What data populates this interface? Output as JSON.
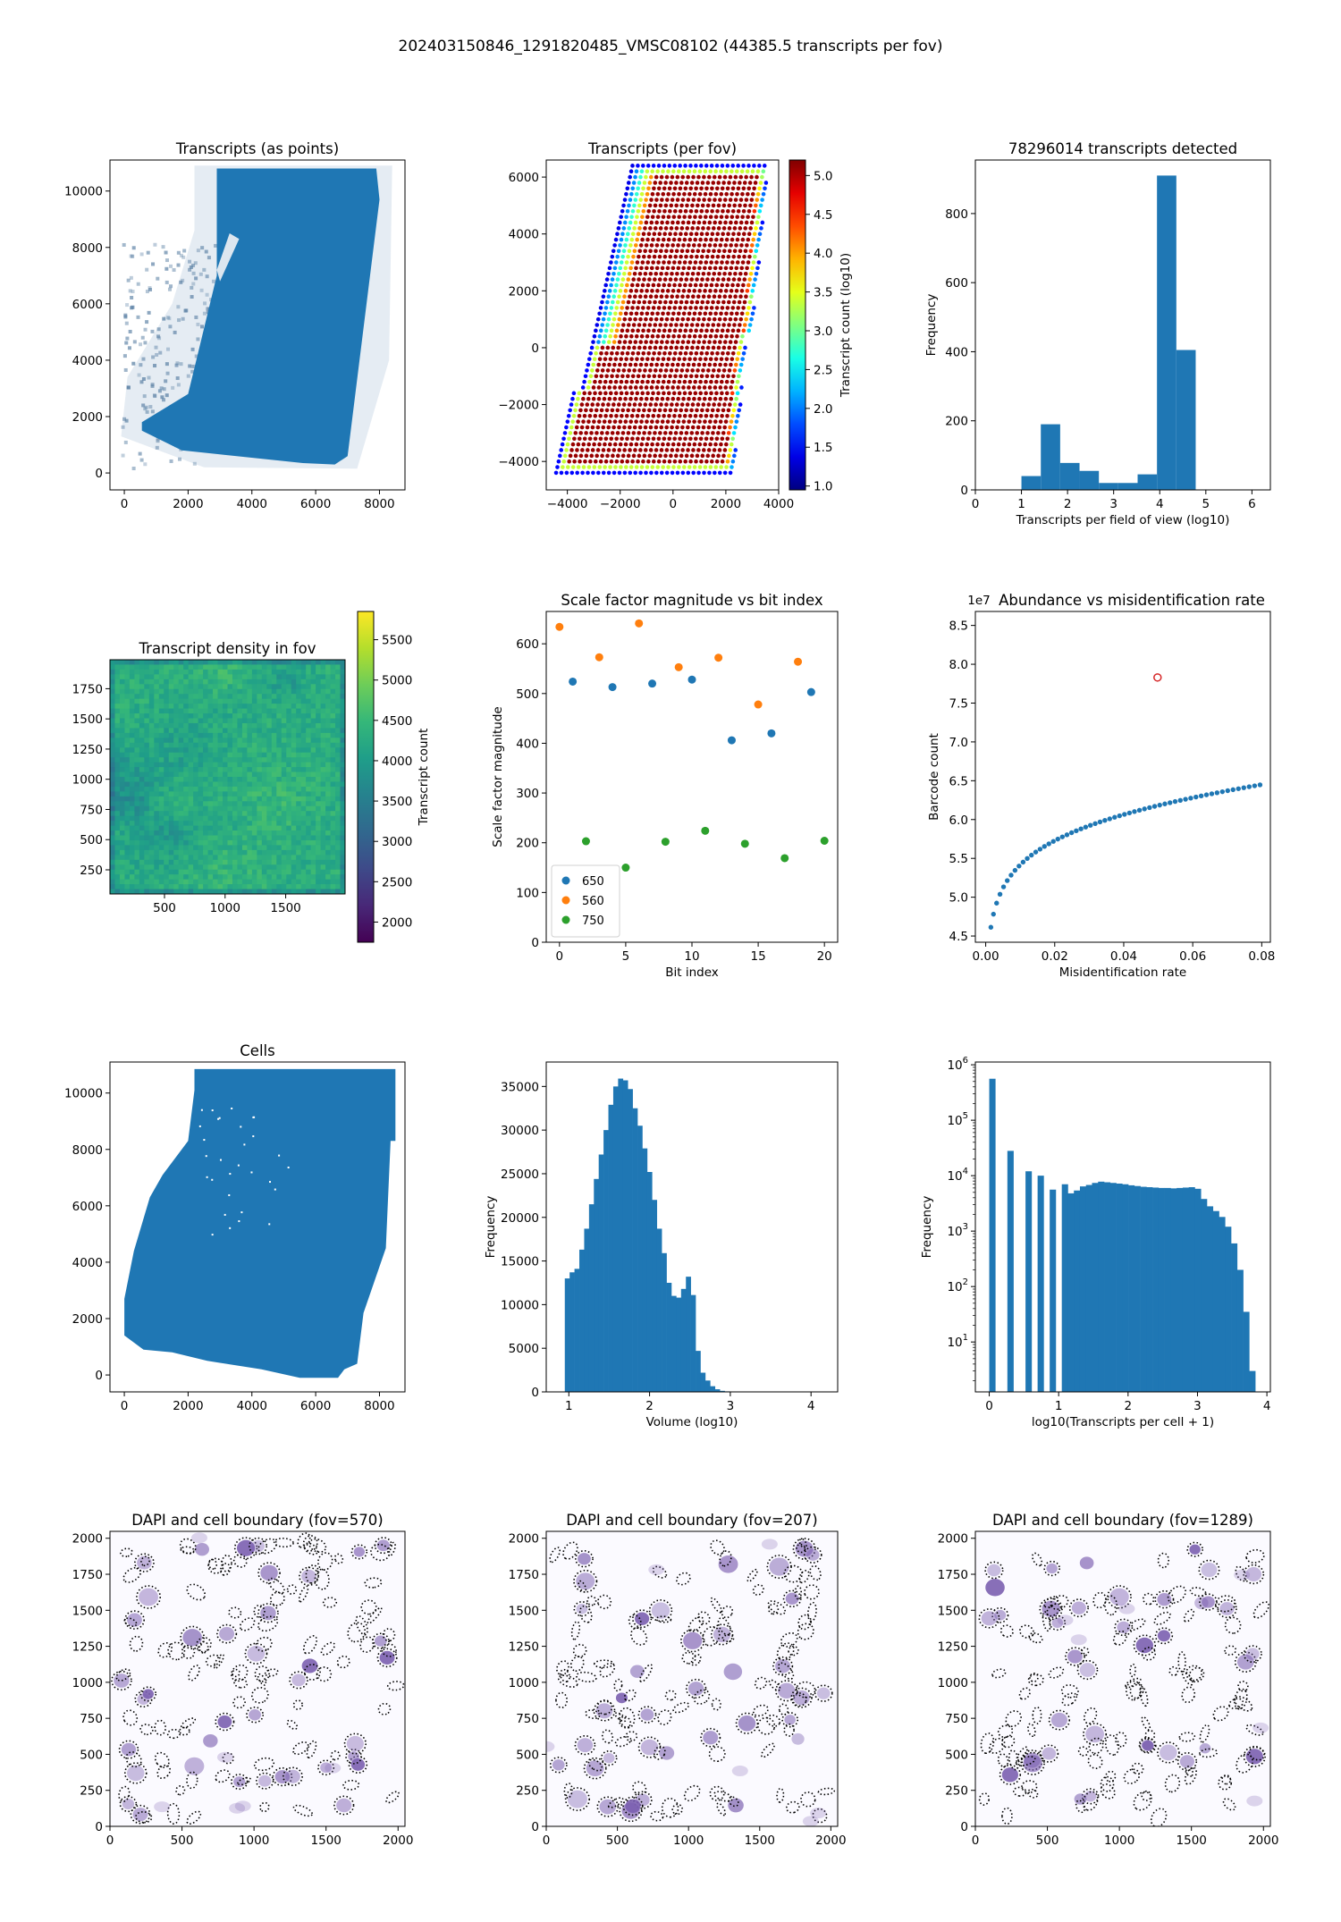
{
  "figure": {
    "suptitle": "202403150846_1291820485_VMSC08102 (44385.5 transcripts per fov)"
  },
  "colors": {
    "c650": "#1f77b4",
    "c560": "#ff7f0e",
    "c750": "#2ca02c",
    "hist": "#1f77b4",
    "highlight": "#d62728",
    "dapi": "#7b5fb0"
  },
  "chart_data": [
    {
      "id": "p1",
      "type": "scatter",
      "title": "Transcripts (as points)",
      "xlabel": "",
      "ylabel": "",
      "xlim": [
        -450,
        8800
      ],
      "ylim": [
        -600,
        11100
      ],
      "xticks": [
        0,
        2000,
        4000,
        6000,
        8000
      ],
      "yticks": [
        0,
        2000,
        4000,
        6000,
        8000,
        10000
      ],
      "main_region": [
        [
          2900,
          10800
        ],
        [
          7900,
          10800
        ],
        [
          8000,
          9700
        ],
        [
          7000,
          600
        ],
        [
          6600,
          300
        ],
        [
          5600,
          350
        ],
        [
          1800,
          800
        ],
        [
          550,
          1500
        ],
        [
          550,
          1800
        ],
        [
          2000,
          2800
        ],
        [
          2900,
          7000
        ]
      ],
      "faint_region": [
        [
          2200,
          10900
        ],
        [
          8400,
          10900
        ],
        [
          8300,
          4000
        ],
        [
          7300,
          150
        ],
        [
          2500,
          200
        ],
        [
          -100,
          1300
        ],
        [
          100,
          3400
        ],
        [
          1500,
          6000
        ],
        [
          2200,
          8600
        ]
      ],
      "hole": [
        [
          3000,
          6800
        ],
        [
          3600,
          8300
        ],
        [
          3300,
          8500
        ],
        [
          2900,
          7200
        ]
      ]
    },
    {
      "id": "p2",
      "type": "scatter",
      "title": "Transcripts (per fov)",
      "xlabel": "",
      "ylabel": "",
      "colorbar_label": "Transcript count (log10)",
      "xlim": [
        -4800,
        4000
      ],
      "ylim": [
        -5000,
        6600
      ],
      "xticks": [
        -4000,
        -2000,
        0,
        2000,
        4000
      ],
      "yticks": [
        -4000,
        -2000,
        0,
        2000,
        4000,
        6000
      ],
      "cbar_range": [
        0.95,
        5.2
      ],
      "cbar_ticks": [
        1.0,
        1.5,
        2.0,
        2.5,
        3.0,
        3.5,
        4.0,
        4.5,
        5.0
      ],
      "tick_labels_x": [
        "−4000",
        "−2000",
        "0",
        "2000",
        "4000"
      ],
      "tick_labels_y": [
        "−4000",
        "−2000",
        "0",
        "2000",
        "4000",
        "6000"
      ],
      "grid_spacing": 200
    },
    {
      "id": "p3",
      "type": "bar",
      "title": "78296014 transcripts detected",
      "xlabel": "Transcripts per field of view (log10)",
      "ylabel": "Frequency",
      "xlim": [
        0,
        6.4
      ],
      "ylim": [
        0,
        955
      ],
      "xticks": [
        0,
        1,
        2,
        3,
        4,
        5,
        6
      ],
      "yticks": [
        0,
        200,
        400,
        600,
        800
      ],
      "bin_edges": [
        1.0,
        1.42,
        1.84,
        2.26,
        2.68,
        3.1,
        3.52,
        3.94,
        4.36,
        4.78,
        5.2
      ],
      "values": [
        40,
        190,
        78,
        55,
        20,
        20,
        45,
        910,
        405,
        0
      ]
    },
    {
      "id": "p4",
      "type": "heatmap",
      "title": "Transcript density in fov",
      "colorbar_label": "Transcript count",
      "xlim": [
        50,
        1990
      ],
      "ylim": [
        50,
        1990
      ],
      "xticks": [
        500,
        1000,
        1500
      ],
      "yticks": [
        250,
        500,
        750,
        1000,
        1250,
        1500,
        1750
      ],
      "cbar_range": [
        1750,
        5850
      ],
      "cbar_ticks": [
        2000,
        2500,
        3000,
        3500,
        4000,
        4500,
        5000,
        5500
      ]
    },
    {
      "id": "p5",
      "type": "scatter",
      "title": "Scale factor magnitude vs bit index",
      "xlabel": "Bit index",
      "ylabel": "Scale factor magnitude",
      "xlim": [
        -1,
        21
      ],
      "ylim": [
        0,
        665
      ],
      "xticks": [
        0,
        5,
        10,
        15,
        20
      ],
      "yticks": [
        0,
        100,
        200,
        300,
        400,
        500,
        600
      ],
      "legend_position": "lower-left",
      "series": [
        {
          "name": "650",
          "x": [
            1,
            4,
            7,
            10,
            13,
            16,
            19
          ],
          "y": [
            524,
            513,
            520,
            528,
            406,
            420,
            503
          ]
        },
        {
          "name": "560",
          "x": [
            0,
            3,
            6,
            9,
            12,
            15,
            18
          ],
          "y": [
            634,
            573,
            641,
            553,
            572,
            478,
            564
          ]
        },
        {
          "name": "750",
          "x": [
            2,
            5,
            8,
            11,
            14,
            17,
            20
          ],
          "y": [
            203,
            150,
            202,
            224,
            198,
            169,
            204
          ]
        }
      ]
    },
    {
      "id": "p6",
      "type": "scatter",
      "title": "Abundance vs misidentification rate",
      "xlabel": "Misidentification rate",
      "ylabel": "Barcode count",
      "offset_label": "1e7",
      "xlim": [
        -0.003,
        0.0825
      ],
      "ylim": [
        4.42,
        8.68
      ],
      "xticks": [
        0.0,
        0.02,
        0.04,
        0.06,
        0.08
      ],
      "yticks": [
        4.5,
        5.0,
        5.5,
        6.0,
        6.5,
        7.0,
        7.5,
        8.0,
        8.5
      ],
      "tick_labels_x": [
        "0.00",
        "0.02",
        "0.04",
        "0.06",
        "0.08"
      ],
      "tick_labels_y": [
        "4.5",
        "5.0",
        "5.5",
        "6.0",
        "6.5",
        "7.0",
        "7.5",
        "8.0",
        "8.5"
      ],
      "curve": {
        "x_start": 0.0015,
        "x_end": 0.0795,
        "n": 58,
        "a": 4.55,
        "b": 0.75,
        "x0": 0.0013
      },
      "highlight": {
        "x": 0.0498,
        "y": 7.83
      }
    },
    {
      "id": "p7",
      "type": "scatter",
      "title": "Cells",
      "xlabel": "",
      "ylabel": "",
      "xlim": [
        -450,
        8800
      ],
      "ylim": [
        -600,
        11100
      ],
      "xticks": [
        0,
        2000,
        4000,
        6000,
        8000
      ],
      "yticks": [
        0,
        2000,
        4000,
        6000,
        8000,
        10000
      ],
      "region": [
        [
          2200,
          10850
        ],
        [
          8500,
          10850
        ],
        [
          8500,
          8300
        ],
        [
          8350,
          8300
        ],
        [
          8200,
          4500
        ],
        [
          7500,
          2200
        ],
        [
          7300,
          400
        ],
        [
          6900,
          200
        ],
        [
          6700,
          -100
        ],
        [
          5500,
          -100
        ],
        [
          4300,
          200
        ],
        [
          2600,
          500
        ],
        [
          1500,
          800
        ],
        [
          600,
          900
        ],
        [
          0,
          1400
        ],
        [
          0,
          2700
        ],
        [
          300,
          4400
        ],
        [
          800,
          6300
        ],
        [
          1200,
          7100
        ],
        [
          2000,
          8300
        ],
        [
          2200,
          10100
        ]
      ]
    },
    {
      "id": "p8",
      "type": "bar",
      "title": "",
      "xlabel": "Volume (log10)",
      "ylabel": "Frequency",
      "xlim": [
        0.72,
        4.33
      ],
      "ylim": [
        0,
        37800
      ],
      "xticks": [
        1,
        2,
        3,
        4
      ],
      "yticks": [
        0,
        5000,
        10000,
        15000,
        20000,
        25000,
        30000,
        35000
      ],
      "bin_start": 0.95,
      "bin_width": 0.06,
      "values": [
        13000,
        13700,
        14100,
        16300,
        18700,
        21500,
        24400,
        27200,
        30000,
        32900,
        35000,
        35900,
        35700,
        34700,
        32500,
        30500,
        27900,
        25200,
        22000,
        18700,
        15900,
        12500,
        11000,
        10800,
        11800,
        13200,
        11100,
        4700,
        2200,
        1300,
        650,
        300,
        120,
        60,
        25,
        10,
        5,
        3
      ]
    },
    {
      "id": "p9",
      "type": "bar",
      "title": "",
      "xlabel": "log10(Transcripts per cell + 1)",
      "ylabel": "Frequency",
      "log_y": true,
      "xlim": [
        -0.2,
        4.05
      ],
      "ylim_log10": [
        0.1,
        6.05
      ],
      "xticks": [
        0,
        1,
        2,
        3,
        4
      ],
      "ytick_exponents": [
        1,
        2,
        3,
        4,
        5,
        6
      ],
      "bin_start": 0.0,
      "bin_width": 0.0871,
      "values": [
        560000,
        0,
        0,
        28000,
        0,
        0,
        12000,
        0,
        10000,
        0,
        5600,
        0,
        7000,
        4800,
        5400,
        6400,
        6800,
        7400,
        7800,
        7600,
        7400,
        7200,
        7000,
        6700,
        6500,
        6300,
        6200,
        6100,
        6000,
        6000,
        5900,
        6000,
        6100,
        6200,
        5800,
        3800,
        2800,
        2300,
        1800,
        1200,
        600,
        200,
        35,
        3
      ]
    },
    {
      "id": "p10",
      "type": "scatter",
      "title": "DAPI and cell boundary (fov=570)",
      "xlim": [
        0,
        2048
      ],
      "ylim": [
        0,
        2048
      ],
      "xticks": [
        0,
        500,
        1000,
        1500,
        2000
      ],
      "yticks": [
        0,
        250,
        500,
        750,
        1000,
        1250,
        1500,
        1750,
        2000
      ],
      "seed": 570
    },
    {
      "id": "p11",
      "type": "scatter",
      "title": "DAPI and cell boundary (fov=207)",
      "xlim": [
        0,
        2048
      ],
      "ylim": [
        0,
        2048
      ],
      "xticks": [
        0,
        500,
        1000,
        1500,
        2000
      ],
      "yticks": [
        0,
        250,
        500,
        750,
        1000,
        1250,
        1500,
        1750,
        2000
      ],
      "seed": 207
    },
    {
      "id": "p12",
      "type": "scatter",
      "title": "DAPI and cell boundary (fov=1289)",
      "xlim": [
        0,
        2048
      ],
      "ylim": [
        0,
        2048
      ],
      "xticks": [
        0,
        500,
        1000,
        1500,
        2000
      ],
      "yticks": [
        0,
        250,
        500,
        750,
        1000,
        1250,
        1500,
        1750,
        2000
      ],
      "seed": 1289
    }
  ]
}
